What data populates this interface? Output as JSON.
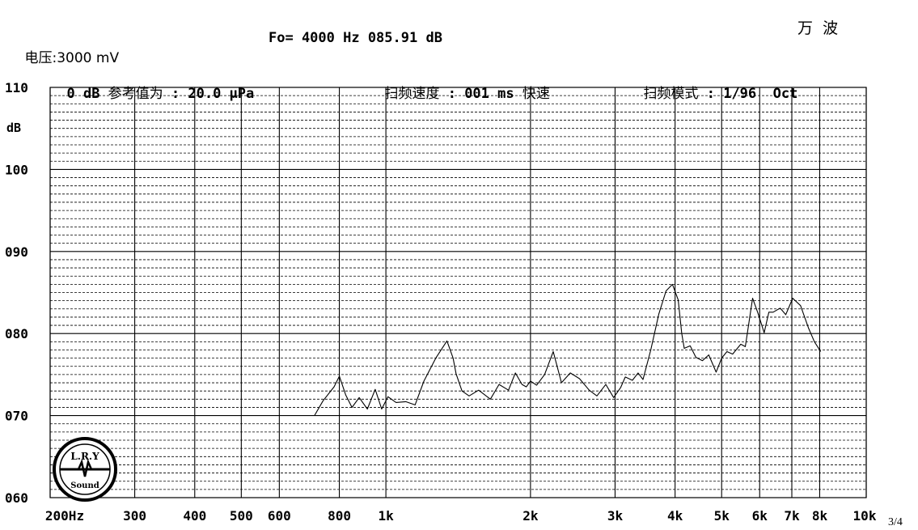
{
  "header": {
    "corner_text": "万  波",
    "voltage": "电压:3000 mV",
    "fo": "Fo= 4000 Hz 085.91 dB",
    "ref_prefix": "0 dB ",
    "ref_cjk": "参考值为",
    "ref_value": " : 20.0 μPa",
    "sweep_speed_cjk": "扫频速度",
    "sweep_speed_value": " : 001 ms ",
    "sweep_speed_mode": "快速",
    "sweep_mode_cjk": "扫频模式",
    "sweep_mode_value": " : 1/96  Oct"
  },
  "logo": {
    "top": "L.R.Y",
    "bottom": "Sound"
  },
  "page_number": "3/4",
  "chart_data": {
    "type": "line",
    "xscale": "log",
    "xlim": [
      200,
      10000
    ],
    "ylim": [
      60,
      110
    ],
    "ylabel": "dB",
    "grid": true,
    "y_ticks": [
      {
        "value": 110,
        "label": "110"
      },
      {
        "value": 100,
        "label": "100"
      },
      {
        "value": 90,
        "label": "090"
      },
      {
        "value": 80,
        "label": "080"
      },
      {
        "value": 70,
        "label": "070"
      },
      {
        "value": 60,
        "label": "060"
      }
    ],
    "x_ticks": [
      {
        "value": 200,
        "label": "200Hz"
      },
      {
        "value": 300,
        "label": "300"
      },
      {
        "value": 400,
        "label": "400"
      },
      {
        "value": 500,
        "label": "500"
      },
      {
        "value": 600,
        "label": "600"
      },
      {
        "value": 800,
        "label": "800"
      },
      {
        "value": 1000,
        "label": "1k"
      },
      {
        "value": 2000,
        "label": "2k"
      },
      {
        "value": 3000,
        "label": "3k"
      },
      {
        "value": 4000,
        "label": "4k"
      },
      {
        "value": 5000,
        "label": "5k"
      },
      {
        "value": 6000,
        "label": "6k"
      },
      {
        "value": 7000,
        "label": "7k"
      },
      {
        "value": 8000,
        "label": "8k"
      },
      {
        "value": 10000,
        "label": "10k"
      }
    ],
    "series": [
      {
        "color": "#000000",
        "x": [
          710,
          740,
          780,
          800,
          825,
          850,
          880,
          915,
          950,
          980,
          1010,
          1050,
          1100,
          1150,
          1200,
          1270,
          1340,
          1380,
          1400,
          1440,
          1490,
          1560,
          1650,
          1720,
          1800,
          1860,
          1920,
          1960,
          2000,
          2060,
          2140,
          2230,
          2320,
          2420,
          2530,
          2650,
          2750,
          2870,
          2980,
          3080,
          3150,
          3260,
          3350,
          3430,
          3560,
          3700,
          3830,
          3950,
          4060,
          4130,
          4180,
          4300,
          4420,
          4560,
          4700,
          4870,
          5000,
          5130,
          5270,
          5480,
          5600,
          5800,
          5950,
          6130,
          6270,
          6400,
          6620,
          6800,
          7030,
          7300,
          7580,
          7800,
          8040
        ],
        "values": [
          70.0,
          71.8,
          73.5,
          74.8,
          72.5,
          71.0,
          72.2,
          70.8,
          73.2,
          70.8,
          72.3,
          71.6,
          71.7,
          71.3,
          74.2,
          77.0,
          79.1,
          77.0,
          75.1,
          73.0,
          72.4,
          73.1,
          72.0,
          73.8,
          73.1,
          75.2,
          73.8,
          73.5,
          74.2,
          73.7,
          75.0,
          77.8,
          74.0,
          75.2,
          74.5,
          73.1,
          72.4,
          73.8,
          72.2,
          73.4,
          74.7,
          74.3,
          75.2,
          74.4,
          78.0,
          82.4,
          85.2,
          86.0,
          84.1,
          80.0,
          78.2,
          78.5,
          77.1,
          76.7,
          77.4,
          75.3,
          77.0,
          77.8,
          77.5,
          78.7,
          78.4,
          84.3,
          82.5,
          80.1,
          82.6,
          82.6,
          83.1,
          82.3,
          84.3,
          83.4,
          80.7,
          79.0,
          77.8
        ]
      }
    ]
  }
}
